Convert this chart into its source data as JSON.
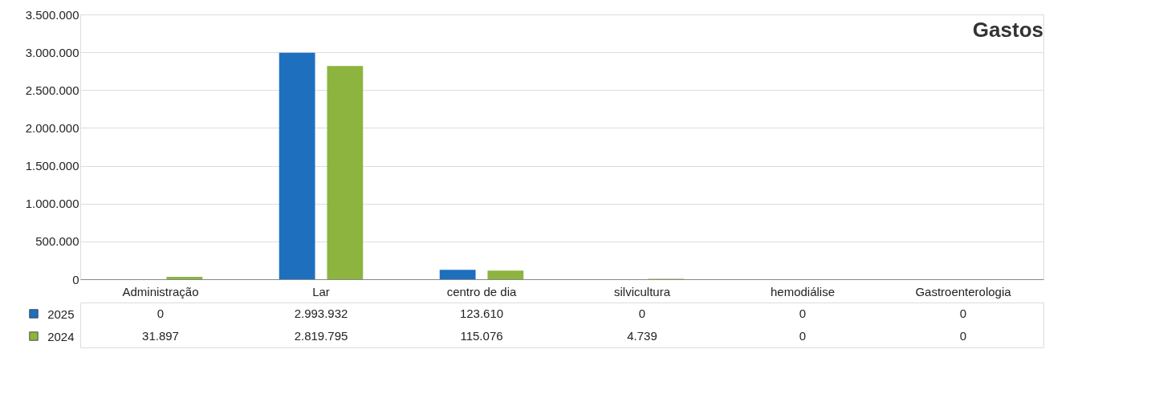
{
  "chart_data": {
    "type": "bar",
    "title": "Gastos",
    "categories": [
      "Administração",
      "Lar",
      "centro de dia",
      "silvicultura",
      "hemodiálise",
      "Gastroenterologia"
    ],
    "series": [
      {
        "name": "2025",
        "color": "#1f6fbf",
        "values": [
          0,
          2993932,
          123610,
          0,
          0,
          0
        ],
        "value_labels": [
          "0",
          "2.993.932",
          "123.610",
          "0",
          "0",
          "0"
        ]
      },
      {
        "name": "2024",
        "color": "#8cb43f",
        "values": [
          31897,
          2819795,
          115076,
          4739,
          0,
          0
        ],
        "value_labels": [
          "31.897",
          "2.819.795",
          "115.076",
          "4.739",
          "0",
          "0"
        ]
      }
    ],
    "ylim": [
      0,
      3500000
    ],
    "yticks": [
      {
        "value": 0,
        "label": "0"
      },
      {
        "value": 500000,
        "label": "500.000"
      },
      {
        "value": 1000000,
        "label": "1.000.000"
      },
      {
        "value": 1500000,
        "label": "1.500.000"
      },
      {
        "value": 2000000,
        "label": "2.000.000"
      },
      {
        "value": 2500000,
        "label": "2.500.000"
      },
      {
        "value": 3000000,
        "label": "3.000.000"
      },
      {
        "value": 3500000,
        "label": "3.500.000"
      }
    ],
    "grid": "y",
    "legend": "bottom"
  }
}
